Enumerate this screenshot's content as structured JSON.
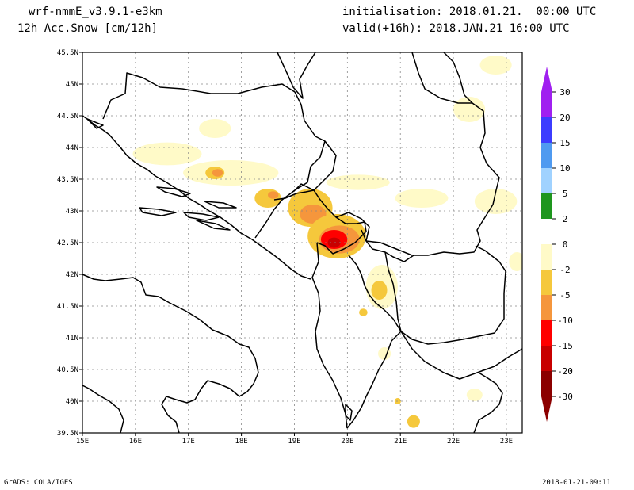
{
  "header": {
    "model": "wrf-nmmE_v3.9.1-e3km",
    "variable": "12h Acc.Snow [cm/12h]",
    "initialisation": "initialisation: 2018.01.21.  00:00 UTC",
    "valid": "valid(+16h): 2018.JAN.21 16:00 UTC"
  },
  "map": {
    "lon_labels": [
      "15E",
      "16E",
      "17E",
      "18E",
      "19E",
      "20E",
      "21E",
      "22E",
      "23E"
    ],
    "lat_labels": [
      "45.5N",
      "45N",
      "44.5N",
      "44N",
      "43.5N",
      "43N",
      "42.5N",
      "42N",
      "41.5N",
      "41N",
      "40.5N",
      "40N",
      "39.5N"
    ],
    "lon_range": [
      15.0,
      23.3
    ],
    "lat_range": [
      39.5,
      45.5
    ],
    "grid": true,
    "colors": {
      "land_outline": "#000000",
      "grid": "#888888"
    }
  },
  "snow_areas": [
    {
      "lon": 16.6,
      "lat": 43.9,
      "category": "-2",
      "rx": 0.65,
      "ry": 0.18
    },
    {
      "lon": 17.8,
      "lat": 43.6,
      "category": "-2",
      "rx": 0.9,
      "ry": 0.2
    },
    {
      "lon": 17.5,
      "lat": 44.3,
      "category": "-2",
      "rx": 0.3,
      "ry": 0.15
    },
    {
      "lon": 17.5,
      "lat": 43.6,
      "category": "-5",
      "rx": 0.18,
      "ry": 0.1
    },
    {
      "lon": 17.55,
      "lat": 43.6,
      "category": "-10",
      "rx": 0.1,
      "ry": 0.06
    },
    {
      "lon": 18.5,
      "lat": 43.2,
      "category": "-5",
      "rx": 0.25,
      "ry": 0.15
    },
    {
      "lon": 18.6,
      "lat": 43.25,
      "category": "-10",
      "rx": 0.1,
      "ry": 0.06
    },
    {
      "lon": 19.3,
      "lat": 43.05,
      "category": "-5",
      "rx": 0.42,
      "ry": 0.3
    },
    {
      "lon": 19.35,
      "lat": 42.95,
      "category": "-10",
      "rx": 0.25,
      "ry": 0.15
    },
    {
      "lon": 19.8,
      "lat": 42.6,
      "category": "-5",
      "rx": 0.55,
      "ry": 0.35
    },
    {
      "lon": 19.85,
      "lat": 42.55,
      "category": "-10",
      "rx": 0.38,
      "ry": 0.22
    },
    {
      "lon": 19.75,
      "lat": 42.55,
      "category": "-15",
      "rx": 0.25,
      "ry": 0.15
    },
    {
      "lon": 19.75,
      "lat": 42.5,
      "category": "-20",
      "rx": 0.12,
      "ry": 0.08
    },
    {
      "lon": 20.2,
      "lat": 43.45,
      "category": "-2",
      "rx": 0.6,
      "ry": 0.12
    },
    {
      "lon": 21.4,
      "lat": 43.2,
      "category": "-2",
      "rx": 0.5,
      "ry": 0.15
    },
    {
      "lon": 22.8,
      "lat": 43.15,
      "category": "-2",
      "rx": 0.4,
      "ry": 0.2
    },
    {
      "lon": 22.3,
      "lat": 44.6,
      "category": "-2",
      "rx": 0.3,
      "ry": 0.2
    },
    {
      "lon": 22.8,
      "lat": 45.3,
      "category": "-2",
      "rx": 0.3,
      "ry": 0.15
    },
    {
      "lon": 20.65,
      "lat": 41.8,
      "category": "-2",
      "rx": 0.3,
      "ry": 0.35
    },
    {
      "lon": 20.6,
      "lat": 41.75,
      "category": "-5",
      "rx": 0.15,
      "ry": 0.15
    },
    {
      "lon": 20.3,
      "lat": 41.4,
      "category": "-5",
      "rx": 0.08,
      "ry": 0.06
    },
    {
      "lon": 20.7,
      "lat": 40.75,
      "category": "-2",
      "rx": 0.12,
      "ry": 0.1
    },
    {
      "lon": 22.4,
      "lat": 40.1,
      "category": "-2",
      "rx": 0.15,
      "ry": 0.1
    },
    {
      "lon": 21.25,
      "lat": 39.68,
      "category": "-5",
      "rx": 0.12,
      "ry": 0.1
    },
    {
      "lon": 20.95,
      "lat": 40.0,
      "category": "-5",
      "rx": 0.06,
      "ry": 0.05
    },
    {
      "lon": 23.2,
      "lat": 42.2,
      "category": "-2",
      "rx": 0.15,
      "ry": 0.15
    }
  ],
  "legend": {
    "labels": [
      "30",
      "20",
      "15",
      "10",
      "5",
      "2",
      "0",
      "-2",
      "-5",
      "-10",
      "-15",
      "-20",
      "-30"
    ],
    "colors": {
      "30": "#a020f0",
      "20": "#3c3cff",
      "15": "#4f9af0",
      "10": "#a0d2ff",
      "5": "#1e961e",
      "2": "#64e664",
      "0": "#ffffff",
      "-2": "#fffac8",
      "-5": "#f5c83c",
      "-10": "#f5963c",
      "-15": "#ff0000",
      "-20": "#c80000",
      "-30": "#8b0000"
    }
  },
  "footer": {
    "left": "GrADS: COLA/IGES",
    "right": "2018-01-21-09:11"
  }
}
